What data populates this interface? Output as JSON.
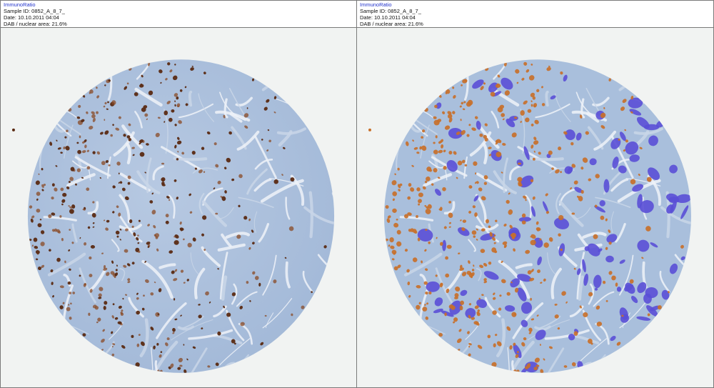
{
  "panels": [
    {
      "id": "original",
      "app_name": "ImmunoRatio",
      "sample_id": "Sample ID: 0852_A_8_7_",
      "date": "Date: 10.10.2011 04:04",
      "dab_area": "DAB / nuclear area: 21.6%"
    },
    {
      "id": "overlay",
      "app_name": "ImmunoRatio",
      "sample_id": "Sample ID: 0852_A_8_7_",
      "date": "Date: 10.10.2011 04:04",
      "dab_area": "DAB / nuclear area: 21.6%"
    }
  ],
  "colors": {
    "background": "#f1f3f2",
    "tissue_blue": "#a9bfdc",
    "stroma_light": "#dfe7f1",
    "dab_brown": "#5a2a12",
    "positive_orange": "#c8702a",
    "negative_purple": "#5a4fd6"
  }
}
